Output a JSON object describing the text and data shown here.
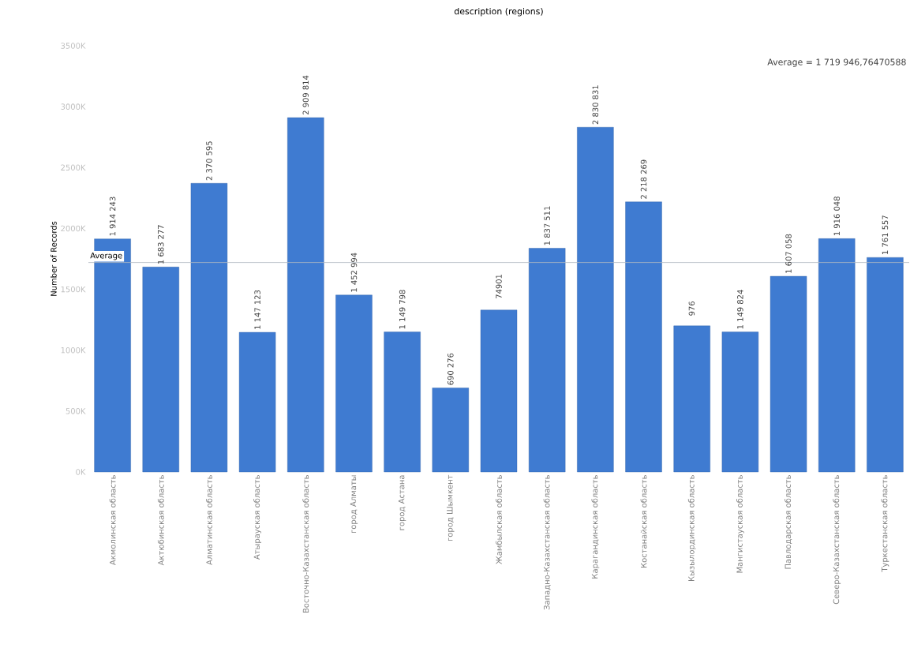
{
  "chart_data": {
    "type": "bar",
    "title": "description (regions)",
    "ylabel": "Number of Records",
    "categories": [
      "Акмолинская область",
      "Актюбинская область",
      "Алматинская область",
      "Атырауская область",
      "Восточно-Казахстанская область",
      "город Алматы",
      "город Астана",
      "город Шымкент",
      "Жамбылская область",
      "Западно-Казахстанская область",
      "Карагандинская область",
      "Костанайская область",
      "Кызылординская область",
      "Мангистауская область",
      "Павлодарская область",
      "Северо-Казахстанская область",
      "Туркестанская область"
    ],
    "values": [
      1914243,
      1683277,
      2370595,
      1147123,
      2909814,
      1452994,
      1149798,
      690276,
      1330000,
      1837511,
      2830831,
      2218269,
      1200000,
      1149824,
      1607058,
      1916048,
      1761557
    ],
    "value_labels": [
      "1 914 243",
      "1 683 277",
      "2 370 595",
      "1 147 123",
      "2 909 814",
      "1 452 994",
      "1 149 798",
      "690 276",
      null,
      "1 837 511",
      "2 830 831",
      "2 218 269",
      null,
      "1 149 824",
      "1 607 058",
      "1 916 048",
      "1 761 557"
    ],
    "color": "#3f7bd1",
    "ylim": [
      0,
      3500000
    ],
    "yticks": [
      {
        "value": 0,
        "label": "0K"
      },
      {
        "value": 500000,
        "label": "500K"
      },
      {
        "value": 1000000,
        "label": "1000K"
      },
      {
        "value": 1500000,
        "label": "1500K"
      },
      {
        "value": 2000000,
        "label": "2000K"
      },
      {
        "value": 2500000,
        "label": "2500K"
      },
      {
        "value": 3000000,
        "label": "3000K"
      },
      {
        "value": 3500000,
        "label": "3500K"
      }
    ],
    "ref_lines": [
      {
        "axis": "y",
        "value": 1719946.76470588,
        "label": "Average",
        "color": "#b0b8c0"
      }
    ],
    "annotations": [
      "Average = 1 719 946,76470588",
      "74901",
      "976"
    ]
  }
}
